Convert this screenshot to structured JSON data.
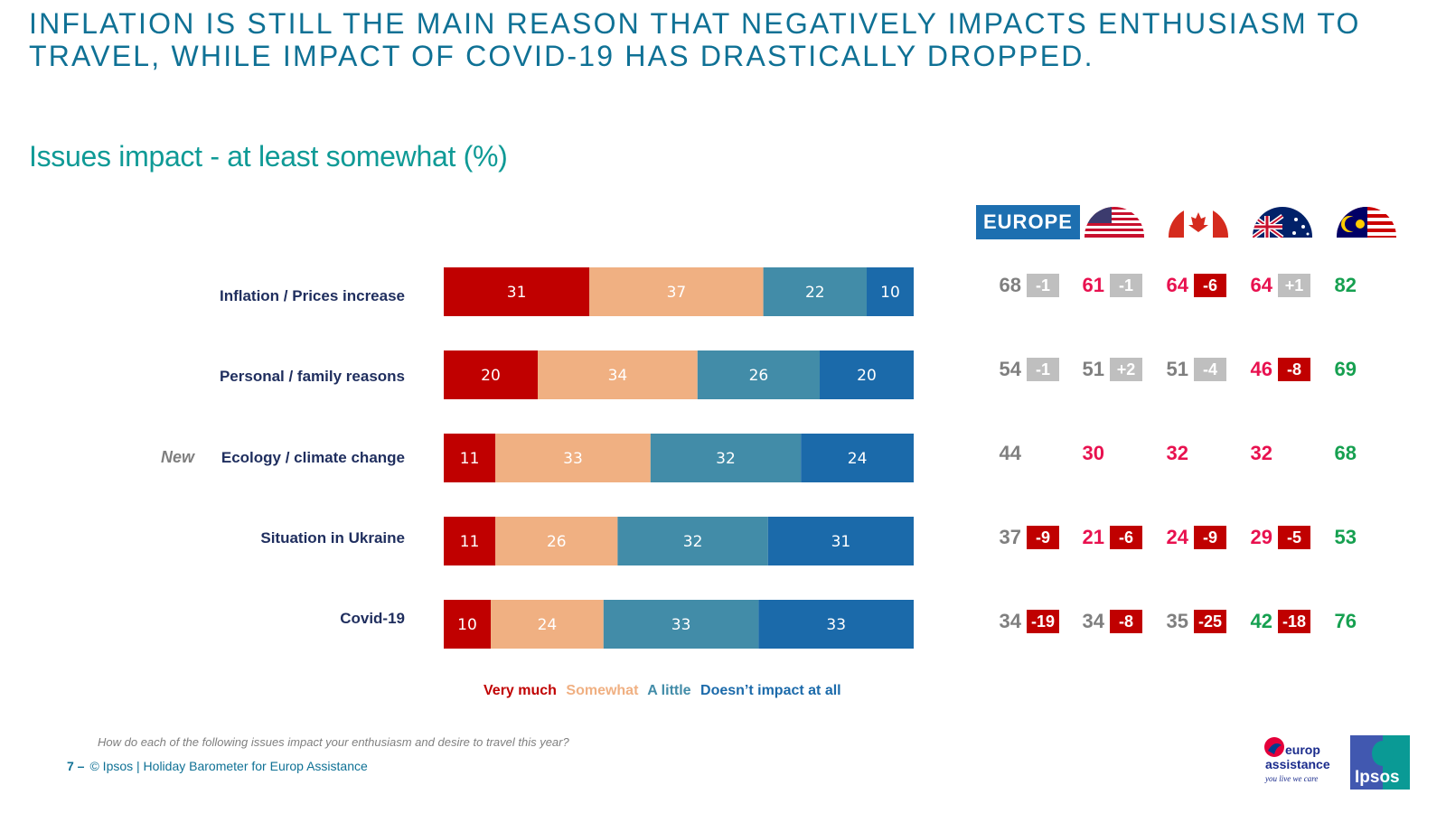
{
  "headline": "Inflation is still the main reason that negatively impacts enthusiasm to travel, while impact of COVID-19 has drastically dropped.",
  "subtitle": "Issues impact - at least somewhat (%)",
  "new_tag": "New",
  "chart_data": {
    "type": "bar",
    "orientation": "horizontal-stacked-100",
    "title": "Issues impact - at least somewhat (%)",
    "categories": [
      "Inflation / Prices increase",
      "Personal / family reasons",
      "Ecology / climate change",
      "Situation in Ukraine",
      "Covid-19"
    ],
    "series": [
      {
        "name": "Very much",
        "color": "#c00000",
        "values": [
          31,
          20,
          11,
          11,
          10
        ]
      },
      {
        "name": "Somewhat",
        "color": "#f0b082",
        "values": [
          37,
          34,
          33,
          26,
          24
        ]
      },
      {
        "name": "A little",
        "color": "#428ca8",
        "values": [
          22,
          26,
          32,
          32,
          33
        ]
      },
      {
        "name": "Doesn’t impact at all",
        "color": "#1b6aaa",
        "values": [
          10,
          20,
          24,
          31,
          33
        ]
      }
    ],
    "new_categories": [
      "Ecology / climate change"
    ],
    "xlim": [
      0,
      100
    ],
    "legend_position": "bottom",
    "legend_colors": [
      "#c00000",
      "#f0b082",
      "#428ca8",
      "#1b6aaa"
    ]
  },
  "regions": {
    "columns": [
      {
        "name": "EUROPE",
        "kind": "badge"
      },
      {
        "name": "USA",
        "kind": "flag-us"
      },
      {
        "name": "Canada",
        "kind": "flag-ca"
      },
      {
        "name": "Australia",
        "kind": "flag-au"
      },
      {
        "name": "Malaysia",
        "kind": "flag-my"
      }
    ],
    "rows": [
      [
        {
          "value": "68",
          "color": "#7f7f7f",
          "delta": "-1",
          "delta_bg": "#bfbfbf"
        },
        {
          "value": "61",
          "color": "#e8114f",
          "delta": "-1",
          "delta_bg": "#bfbfbf"
        },
        {
          "value": "64",
          "color": "#e8114f",
          "delta": "-6",
          "delta_bg": "#c00000"
        },
        {
          "value": "64",
          "color": "#e8114f",
          "delta": "+1",
          "delta_bg": "#bfbfbf"
        },
        {
          "value": "82",
          "color": "#16a050",
          "delta": null
        }
      ],
      [
        {
          "value": "54",
          "color": "#7f7f7f",
          "delta": "-1",
          "delta_bg": "#bfbfbf"
        },
        {
          "value": "51",
          "color": "#7f7f7f",
          "delta": "+2",
          "delta_bg": "#bfbfbf"
        },
        {
          "value": "51",
          "color": "#7f7f7f",
          "delta": "-4",
          "delta_bg": "#bfbfbf"
        },
        {
          "value": "46",
          "color": "#e8114f",
          "delta": "-8",
          "delta_bg": "#c00000"
        },
        {
          "value": "69",
          "color": "#16a050",
          "delta": null
        }
      ],
      [
        {
          "value": "44",
          "color": "#7f7f7f",
          "delta": null
        },
        {
          "value": "30",
          "color": "#e8114f",
          "delta": null
        },
        {
          "value": "32",
          "color": "#e8114f",
          "delta": null
        },
        {
          "value": "32",
          "color": "#e8114f",
          "delta": null
        },
        {
          "value": "68",
          "color": "#16a050",
          "delta": null
        }
      ],
      [
        {
          "value": "37",
          "color": "#7f7f7f",
          "delta": "-9",
          "delta_bg": "#c00000"
        },
        {
          "value": "21",
          "color": "#e8114f",
          "delta": "-6",
          "delta_bg": "#c00000"
        },
        {
          "value": "24",
          "color": "#e8114f",
          "delta": "-9",
          "delta_bg": "#c00000"
        },
        {
          "value": "29",
          "color": "#e8114f",
          "delta": "-5",
          "delta_bg": "#c00000"
        },
        {
          "value": "53",
          "color": "#16a050",
          "delta": null
        }
      ],
      [
        {
          "value": "34",
          "color": "#7f7f7f",
          "delta": "-19",
          "delta_bg": "#c00000"
        },
        {
          "value": "34",
          "color": "#7f7f7f",
          "delta": "-8",
          "delta_bg": "#c00000"
        },
        {
          "value": "35",
          "color": "#7f7f7f",
          "delta": "-25",
          "delta_bg": "#c00000"
        },
        {
          "value": "42",
          "color": "#16a050",
          "delta": "-18",
          "delta_bg": "#c00000"
        },
        {
          "value": "76",
          "color": "#16a050",
          "delta": null
        }
      ]
    ]
  },
  "footnote": "How do each of the following issues impact your enthusiasm and desire to travel this year?",
  "footer": {
    "page": "7 –",
    "text": "© Ipsos | Holiday Barometer for Europ Assistance"
  },
  "logos": {
    "europ_assistance": {
      "line1": "europ",
      "line2": "assistance",
      "tagline": "you live we care"
    },
    "ipsos": "Ipsos"
  }
}
